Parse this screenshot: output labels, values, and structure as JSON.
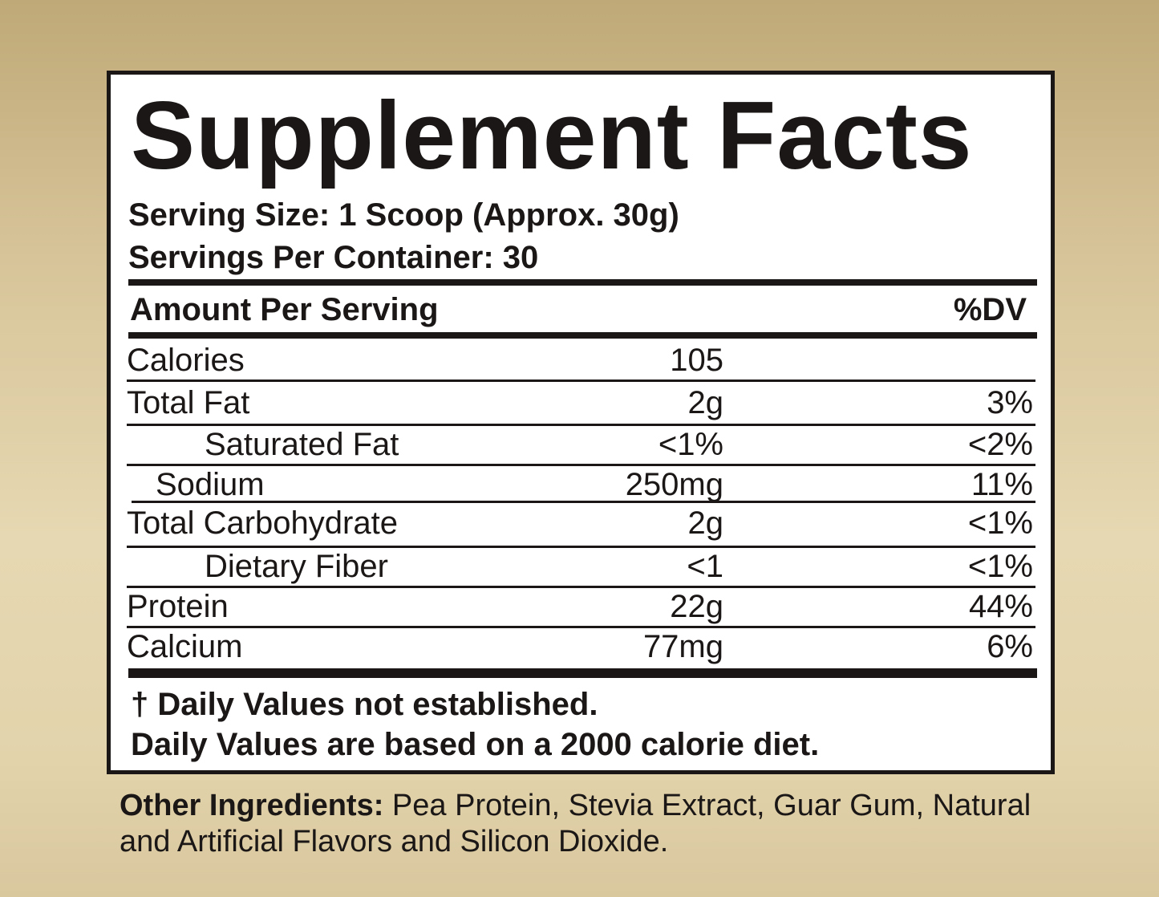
{
  "title": "Supplement Facts",
  "serving_size": "Serving Size: 1 Scoop (Approx. 30g)",
  "servings_per_container": "Servings Per Container: 30",
  "header": {
    "amount": "Amount Per Serving",
    "dv": "%DV"
  },
  "rows": [
    {
      "name": "Calories",
      "amount": "105",
      "dv": ""
    },
    {
      "name": "Total Fat",
      "amount": "2g",
      "dv": "3%"
    },
    {
      "name": "Saturated Fat",
      "amount": "<1%",
      "dv": "<2%"
    },
    {
      "name": "Sodium",
      "amount": "250mg",
      "dv": "11%"
    },
    {
      "name": "Total Carbohydrate",
      "amount": "2g",
      "dv": "<1%"
    },
    {
      "name": "Dietary Fiber",
      "amount": "<1",
      "dv": "<1%"
    },
    {
      "name": "Protein",
      "amount": "22g",
      "dv": "44%"
    },
    {
      "name": "Calcium",
      "amount": "77mg",
      "dv": "6%"
    }
  ],
  "footnotes": [
    "† Daily Values not established.",
    "Daily Values are based on a 2000 calorie diet."
  ],
  "other_ingredients": {
    "label": "Other Ingredients:",
    "text": " Pea Protein, Stevia Extract, Guar Gum, Natural and Artificial Flavors and Silicon Dioxide."
  }
}
